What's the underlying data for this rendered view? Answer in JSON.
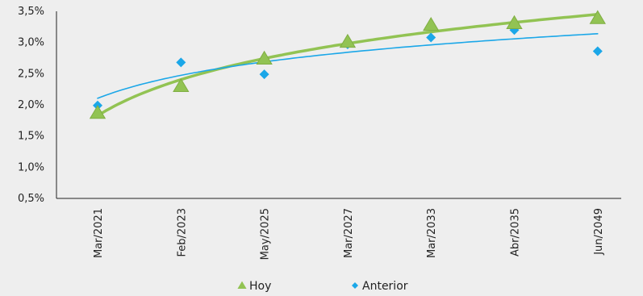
{
  "chart_data": {
    "type": "scatter",
    "categories": [
      "Mar/2021",
      "Feb/2023",
      "May/2025",
      "Mar/2027",
      "Mar/2033",
      "Abr/2035",
      "Jun/2049"
    ],
    "yticks": [
      "0,5%",
      "1,0%",
      "1,5%",
      "2,0%",
      "2,5%",
      "3,0%",
      "3,5%"
    ],
    "ylim": [
      0.5,
      3.5
    ],
    "grid": false,
    "legend_position": "bottom",
    "trendlines": "logarithmic",
    "series": [
      {
        "name": "Hoy",
        "marker": "triangle",
        "color": "#92c353",
        "values": [
          1.87,
          2.3,
          2.74,
          3.01,
          3.28,
          3.31,
          3.39
        ]
      },
      {
        "name": "Anterior",
        "marker": "diamond",
        "color": "#1ba7e8",
        "values": [
          1.99,
          2.68,
          2.49,
          2.97,
          3.08,
          3.2,
          2.86
        ]
      }
    ]
  }
}
